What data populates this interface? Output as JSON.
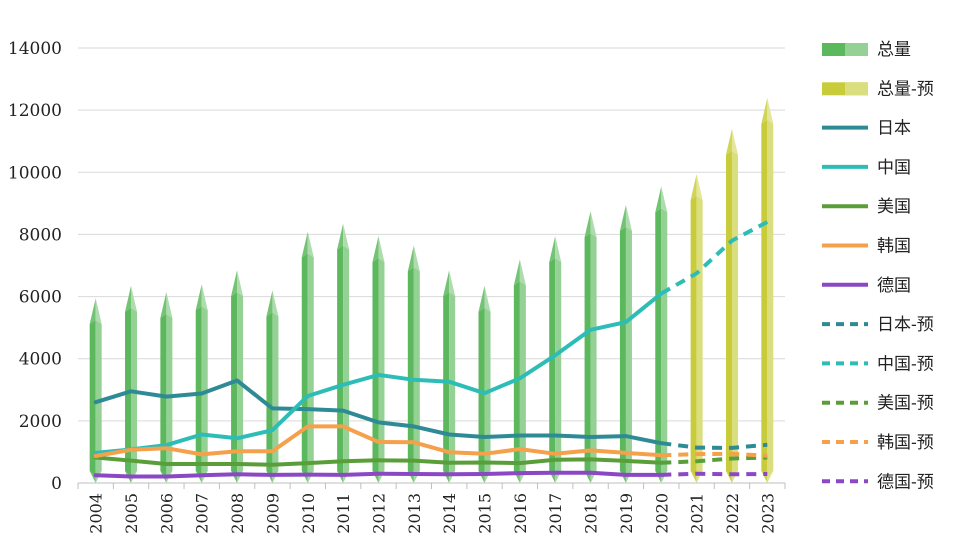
{
  "chart_data": {
    "type": "bar",
    "title": "",
    "xlabel": "",
    "ylabel": "",
    "ylim": [
      0,
      14000
    ],
    "yticks": [
      0,
      2000,
      4000,
      6000,
      8000,
      10000,
      12000,
      14000
    ],
    "grid": true,
    "legend_position": "right",
    "categories": [
      "2004",
      "2005",
      "2006",
      "2007",
      "2008",
      "2009",
      "2010",
      "2011",
      "2012",
      "2013",
      "2014",
      "2015",
      "2016",
      "2017",
      "2018",
      "2019",
      "2020",
      "2021",
      "2022",
      "2023"
    ],
    "bars": [
      {
        "name": "总量",
        "color": "#5cb85c",
        "values": [
          5950,
          6350,
          6150,
          6400,
          6850,
          6200,
          8100,
          8350,
          7950,
          7650,
          6850,
          6350,
          7200,
          7950,
          8750,
          8950,
          9550,
          null,
          null,
          null
        ]
      },
      {
        "name": "总量-预",
        "color": "#c8cc3a",
        "values": [
          null,
          null,
          null,
          null,
          null,
          null,
          null,
          null,
          null,
          null,
          null,
          null,
          null,
          null,
          null,
          null,
          null,
          9950,
          11400,
          12400
        ]
      }
    ],
    "series": [
      {
        "name": "日本",
        "color": "#2e8b96",
        "dash": false,
        "values": [
          2600,
          2950,
          2780,
          2880,
          3300,
          2400,
          2380,
          2330,
          1950,
          1820,
          1560,
          1480,
          1530,
          1530,
          1480,
          1510,
          1280,
          null,
          null,
          null
        ]
      },
      {
        "name": "中国",
        "color": "#2dbdb6",
        "dash": false,
        "values": [
          970,
          1080,
          1220,
          1560,
          1440,
          1700,
          2800,
          3160,
          3480,
          3320,
          3260,
          2890,
          3370,
          4110,
          4930,
          5180,
          6100,
          null,
          null,
          null
        ]
      },
      {
        "name": "美国",
        "color": "#5a9e3a",
        "dash": false,
        "values": [
          820,
          720,
          610,
          610,
          610,
          590,
          640,
          700,
          730,
          720,
          650,
          660,
          640,
          750,
          760,
          710,
          650,
          null,
          null,
          null
        ]
      },
      {
        "name": "韩国",
        "color": "#f5a04a",
        "dash": false,
        "values": [
          870,
          1070,
          1120,
          920,
          1020,
          1020,
          1820,
          1820,
          1320,
          1310,
          990,
          940,
          1090,
          940,
          1050,
          970,
          890,
          null,
          null,
          null
        ]
      },
      {
        "name": "德国",
        "color": "#8b48c4",
        "dash": false,
        "values": [
          250,
          210,
          210,
          250,
          280,
          260,
          270,
          260,
          300,
          290,
          280,
          290,
          320,
          330,
          330,
          260,
          260,
          null,
          null,
          null
        ]
      },
      {
        "name": "日本-预",
        "color": "#2e8b96",
        "dash": true,
        "values": [
          null,
          null,
          null,
          null,
          null,
          null,
          null,
          null,
          null,
          null,
          null,
          null,
          null,
          null,
          null,
          null,
          1280,
          1140,
          1130,
          1230
        ]
      },
      {
        "name": "中国-预",
        "color": "#2dbdb6",
        "dash": true,
        "values": [
          null,
          null,
          null,
          null,
          null,
          null,
          null,
          null,
          null,
          null,
          null,
          null,
          null,
          null,
          null,
          null,
          6100,
          6750,
          7800,
          8400
        ]
      },
      {
        "name": "美国-预",
        "color": "#5a9e3a",
        "dash": true,
        "values": [
          null,
          null,
          null,
          null,
          null,
          null,
          null,
          null,
          null,
          null,
          null,
          null,
          null,
          null,
          null,
          null,
          650,
          700,
          790,
          820
        ]
      },
      {
        "name": "韩国-预",
        "color": "#f5a04a",
        "dash": true,
        "values": [
          null,
          null,
          null,
          null,
          null,
          null,
          null,
          null,
          null,
          null,
          null,
          null,
          null,
          null,
          null,
          null,
          890,
          930,
          940,
          880
        ]
      },
      {
        "name": "德国-预",
        "color": "#8b48c4",
        "dash": true,
        "values": [
          null,
          null,
          null,
          null,
          null,
          null,
          null,
          null,
          null,
          null,
          null,
          null,
          null,
          null,
          null,
          null,
          260,
          300,
          280,
          290
        ]
      }
    ]
  }
}
